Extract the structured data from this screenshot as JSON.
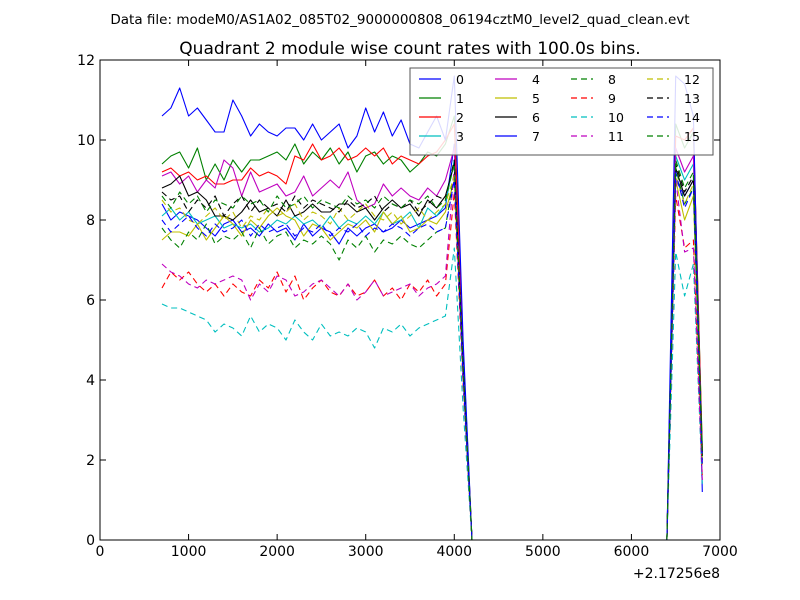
{
  "chart_data": {
    "type": "line",
    "suptitle": "Data file: modeM0/AS1A02_085T02_9000000808_06194cztM0_level2_quad_clean.evt",
    "title": "Quadrant 2 module wise count rates with 100.0s bins.",
    "xlabel": "",
    "ylabel": "",
    "xlim": [
      0,
      7000
    ],
    "ylim": [
      0,
      12
    ],
    "x_offset_label": "+2.17256e8",
    "x_ticks": [
      0,
      1000,
      2000,
      3000,
      4000,
      5000,
      6000,
      7000
    ],
    "x_tick_labels": [
      "0",
      "1000",
      "2000",
      "3000",
      "4000",
      "5000",
      "6000",
      "7000"
    ],
    "y_ticks": [
      0,
      2,
      4,
      6,
      8,
      10,
      12
    ],
    "y_tick_labels": [
      "0",
      "2",
      "4",
      "6",
      "8",
      "10",
      "12"
    ],
    "grid": false,
    "legend_position": "top-right",
    "x": [
      700,
      800,
      900,
      1000,
      1100,
      1200,
      1300,
      1400,
      1500,
      1600,
      1700,
      1800,
      1900,
      2000,
      2100,
      2200,
      2300,
      2400,
      2500,
      2600,
      2700,
      2800,
      2900,
      3000,
      3100,
      3200,
      3300,
      3400,
      3500,
      3600,
      3700,
      3800,
      3900,
      4000,
      4100,
      4200,
      6400,
      6500,
      6600,
      6700,
      6800
    ],
    "series": [
      {
        "name": "0",
        "color": "#0000ff",
        "dash": "solid",
        "values": [
          8.4,
          8.0,
          8.2,
          8.1,
          8.0,
          7.8,
          7.6,
          7.9,
          8.0,
          7.7,
          7.8,
          7.6,
          7.9,
          7.7,
          7.8,
          7.5,
          7.9,
          7.6,
          7.8,
          7.7,
          7.4,
          7.8,
          7.6,
          7.8,
          7.9,
          7.7,
          7.8,
          8.0,
          7.8,
          7.9,
          8.0,
          8.1,
          8.3,
          9.9,
          4.5,
          0,
          0,
          9.0,
          8.6,
          9.0,
          2.2
        ]
      },
      {
        "name": "1",
        "color": "#008000",
        "dash": "solid",
        "values": [
          9.4,
          9.6,
          9.7,
          9.3,
          9.8,
          9.0,
          9.4,
          9.0,
          9.5,
          9.2,
          9.5,
          9.5,
          9.6,
          9.7,
          9.5,
          9.9,
          9.4,
          9.7,
          9.5,
          9.8,
          9.4,
          9.7,
          9.2,
          9.6,
          9.7,
          9.4,
          9.6,
          9.5,
          9.2,
          9.4,
          9.7,
          9.6,
          9.9,
          10.6,
          4.8,
          0,
          0,
          10.4,
          9.8,
          10.2,
          2.3
        ]
      },
      {
        "name": "2",
        "color": "#ff0000",
        "dash": "solid",
        "values": [
          9.2,
          9.3,
          9.1,
          9.2,
          9.0,
          9.1,
          8.9,
          8.9,
          9.0,
          9.0,
          9.3,
          9.1,
          9.2,
          9.1,
          8.9,
          9.6,
          9.5,
          9.9,
          9.5,
          9.6,
          9.8,
          9.5,
          9.6,
          9.8,
          9.6,
          9.8,
          9.4,
          9.6,
          9.5,
          9.4,
          9.6,
          9.7,
          10.0,
          10.4,
          4.7,
          0,
          0,
          10.1,
          10.0,
          10.3,
          2.2
        ]
      },
      {
        "name": "3",
        "color": "#00bfbf",
        "dash": "solid",
        "values": [
          8.1,
          8.3,
          8.0,
          8.2,
          7.9,
          8.0,
          8.1,
          7.8,
          7.9,
          7.8,
          7.9,
          7.7,
          7.8,
          8.0,
          7.9,
          8.1,
          7.9,
          8.0,
          7.8,
          8.1,
          7.8,
          8.0,
          7.9,
          8.1,
          7.9,
          8.2,
          7.9,
          8.0,
          8.2,
          7.8,
          8.3,
          8.1,
          8.4,
          9.5,
          4.3,
          0,
          0,
          9.6,
          9.0,
          9.4,
          2.0
        ]
      },
      {
        "name": "4",
        "color": "#bf00bf",
        "dash": "solid",
        "values": [
          9.1,
          9.2,
          8.9,
          9.1,
          8.7,
          9.0,
          8.8,
          9.5,
          9.3,
          8.6,
          9.2,
          8.7,
          8.8,
          8.9,
          8.6,
          8.7,
          9.1,
          8.6,
          8.8,
          9.0,
          8.8,
          9.2,
          8.5,
          8.3,
          8.4,
          8.9,
          8.6,
          8.8,
          8.6,
          8.5,
          8.8,
          8.6,
          9.0,
          9.8,
          4.4,
          0,
          0,
          9.8,
          9.2,
          9.6,
          2.1
        ]
      },
      {
        "name": "5",
        "color": "#bfbf00",
        "dash": "solid",
        "values": [
          7.5,
          7.7,
          7.7,
          7.6,
          7.9,
          7.5,
          7.8,
          8.1,
          7.9,
          7.6,
          8.0,
          7.8,
          8.1,
          8.3,
          8.1,
          8.0,
          7.6,
          7.9,
          7.8,
          7.5,
          7.7,
          7.9,
          7.8,
          8.0,
          7.7,
          8.2,
          7.9,
          8.1,
          7.7,
          7.8,
          8.0,
          7.9,
          8.2,
          9.0,
          4.1,
          0,
          0,
          9.0,
          8.0,
          8.6,
          1.9
        ]
      },
      {
        "name": "6",
        "color": "#000000",
        "dash": "solid",
        "values": [
          8.8,
          8.9,
          9.1,
          8.6,
          8.7,
          8.5,
          8.1,
          8.1,
          8.0,
          8.2,
          8.5,
          8.2,
          8.3,
          8.1,
          8.5,
          8.1,
          8.2,
          8.4,
          8.2,
          8.2,
          8.4,
          8.4,
          8.2,
          8.3,
          8.0,
          8.3,
          8.5,
          8.3,
          8.4,
          8.1,
          8.5,
          8.3,
          8.6,
          9.4,
          4.3,
          0,
          0,
          9.3,
          8.6,
          9.0,
          2.1
        ]
      },
      {
        "name": "7",
        "color": "#0000ff",
        "dash": "solid",
        "values": [
          10.6,
          10.8,
          11.3,
          10.6,
          10.8,
          10.5,
          10.2,
          10.2,
          11.0,
          10.6,
          10.1,
          10.4,
          10.2,
          10.1,
          10.3,
          10.3,
          10.0,
          10.4,
          10.0,
          10.2,
          10.4,
          9.8,
          10.1,
          10.8,
          10.2,
          10.7,
          10.1,
          10.5,
          9.9,
          9.8,
          10.2,
          10.6,
          10.0,
          11.6,
          5.0,
          0,
          0,
          11.6,
          11.4,
          10.6,
          1.2
        ]
      },
      {
        "name": "8",
        "color": "#008000",
        "dash": "dashed",
        "values": [
          7.8,
          7.5,
          7.3,
          7.7,
          7.5,
          7.9,
          7.4,
          7.6,
          7.5,
          7.7,
          7.3,
          7.8,
          7.4,
          7.6,
          7.7,
          7.3,
          7.5,
          7.4,
          7.6,
          7.4,
          7.0,
          7.5,
          7.3,
          7.6,
          7.2,
          7.5,
          7.4,
          7.6,
          7.4,
          7.3,
          7.5,
          7.7,
          7.8,
          9.2,
          4.1,
          0,
          0,
          9.3,
          8.4,
          8.8,
          2.0
        ]
      },
      {
        "name": "9",
        "color": "#ff0000",
        "dash": "dashed",
        "values": [
          6.3,
          6.7,
          6.5,
          6.7,
          6.4,
          6.2,
          6.4,
          6.1,
          6.4,
          6.2,
          6.1,
          6.5,
          6.3,
          6.7,
          6.2,
          6.6,
          6.0,
          6.3,
          6.5,
          6.2,
          6.1,
          6.4,
          6.1,
          6.2,
          6.5,
          6.1,
          6.3,
          6.0,
          6.4,
          6.2,
          6.5,
          6.1,
          6.4,
          8.7,
          3.9,
          0,
          0,
          8.6,
          7.3,
          7.5,
          1.6
        ]
      },
      {
        "name": "10",
        "color": "#00bfbf",
        "dash": "dashed",
        "values": [
          5.9,
          5.8,
          5.8,
          5.7,
          5.6,
          5.5,
          5.2,
          5.4,
          5.3,
          5.1,
          5.6,
          5.2,
          5.4,
          5.3,
          5.0,
          5.5,
          5.2,
          5.0,
          5.4,
          5.1,
          5.2,
          5.1,
          5.3,
          5.2,
          4.8,
          5.3,
          5.2,
          5.4,
          5.1,
          5.3,
          5.4,
          5.5,
          5.6,
          7.3,
          3.3,
          0,
          0,
          7.2,
          6.1,
          6.9,
          1.4
        ]
      },
      {
        "name": "11",
        "color": "#bf00bf",
        "dash": "dashed",
        "values": [
          6.9,
          6.7,
          6.6,
          6.4,
          6.3,
          6.5,
          6.4,
          6.5,
          6.6,
          6.5,
          6.0,
          6.4,
          6.2,
          6.6,
          6.5,
          6.1,
          6.2,
          6.4,
          6.5,
          6.3,
          6.1,
          6.4,
          6.0,
          6.2,
          6.5,
          6.1,
          6.2,
          6.3,
          6.4,
          6.1,
          6.3,
          6.4,
          6.6,
          9.3,
          4.0,
          0,
          0,
          9.0,
          7.2,
          7.3,
          1.5
        ]
      },
      {
        "name": "12",
        "color": "#bfbf00",
        "dash": "dashed",
        "values": [
          8.5,
          8.2,
          8.3,
          8.0,
          7.9,
          8.1,
          8.3,
          8.0,
          8.2,
          7.8,
          8.1,
          8.0,
          8.3,
          8.1,
          8.2,
          8.4,
          8.0,
          8.2,
          8.1,
          7.9,
          8.3,
          8.0,
          8.2,
          8.4,
          8.1,
          8.0,
          8.2,
          7.9,
          8.1,
          8.3,
          8.0,
          8.2,
          8.4,
          9.1,
          4.2,
          0,
          0,
          9.1,
          8.4,
          8.9,
          2.0
        ]
      },
      {
        "name": "13",
        "color": "#000000",
        "dash": "dashed",
        "values": [
          8.7,
          8.5,
          8.6,
          8.2,
          8.5,
          8.3,
          8.6,
          8.1,
          8.4,
          8.6,
          8.2,
          8.5,
          8.3,
          8.4,
          8.2,
          8.6,
          8.3,
          8.5,
          8.4,
          8.3,
          8.2,
          8.5,
          8.3,
          8.4,
          8.6,
          8.2,
          8.4,
          8.3,
          8.5,
          8.2,
          8.4,
          8.6,
          8.5,
          9.5,
          4.3,
          0,
          0,
          9.4,
          8.7,
          9.1,
          2.1
        ]
      },
      {
        "name": "14",
        "color": "#0000ff",
        "dash": "dashed",
        "values": [
          8.0,
          7.7,
          7.9,
          8.1,
          7.8,
          7.6,
          7.9,
          7.7,
          7.8,
          8.0,
          7.6,
          7.9,
          7.7,
          7.8,
          7.9,
          7.6,
          7.8,
          7.7,
          7.9,
          7.6,
          7.8,
          7.7,
          7.9,
          7.6,
          7.8,
          7.7,
          7.9,
          7.8,
          7.6,
          7.8,
          7.9,
          7.7,
          7.8,
          9.0,
          4.1,
          0,
          0,
          9.2,
          8.3,
          8.8,
          1.9
        ]
      },
      {
        "name": "15",
        "color": "#008000",
        "dash": "dashed",
        "values": [
          8.6,
          8.3,
          8.7,
          8.4,
          8.6,
          8.2,
          8.5,
          8.4,
          8.3,
          8.6,
          8.4,
          8.5,
          8.2,
          8.6,
          8.3,
          8.4,
          8.6,
          8.3,
          8.5,
          8.4,
          8.3,
          8.6,
          8.4,
          8.5,
          8.3,
          8.6,
          8.4,
          8.3,
          8.5,
          8.4,
          8.6,
          8.3,
          8.5,
          9.4,
          4.3,
          0,
          0,
          9.5,
          8.8,
          9.2,
          2.1
        ]
      }
    ]
  }
}
